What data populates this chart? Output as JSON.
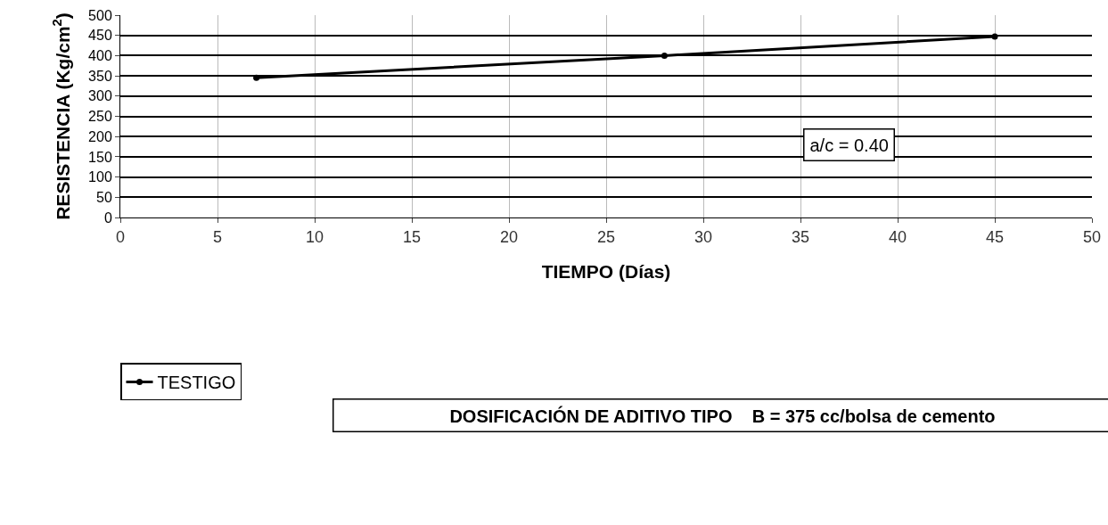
{
  "chart_data": {
    "type": "line",
    "xlabel": "TIEMPO (Días)",
    "ylabel": "RESISTENCIA (Kg/cm$^{2}$)",
    "series": [
      {
        "name": "TESTIGO",
        "color": "#000000",
        "x": [
          7,
          28,
          45
        ],
        "values": [
          345,
          400,
          447
        ]
      }
    ],
    "xlim": [
      0,
      50
    ],
    "xticks": [
      0,
      5,
      10,
      15,
      20,
      25,
      30,
      35,
      40,
      45,
      50
    ],
    "ylim": [
      0,
      500
    ],
    "yticks": [
      0,
      50,
      100,
      150,
      200,
      250,
      300,
      350,
      400,
      450,
      500
    ],
    "grid": true,
    "legend": "bottom left",
    "marker": "circle",
    "line_style": "solid",
    "annotations": [
      "a/c = 0.40",
      "DOSIFICACIÓN DE ADITIVO TIPO    B = 375 cc/bolsa de cemento"
    ]
  }
}
